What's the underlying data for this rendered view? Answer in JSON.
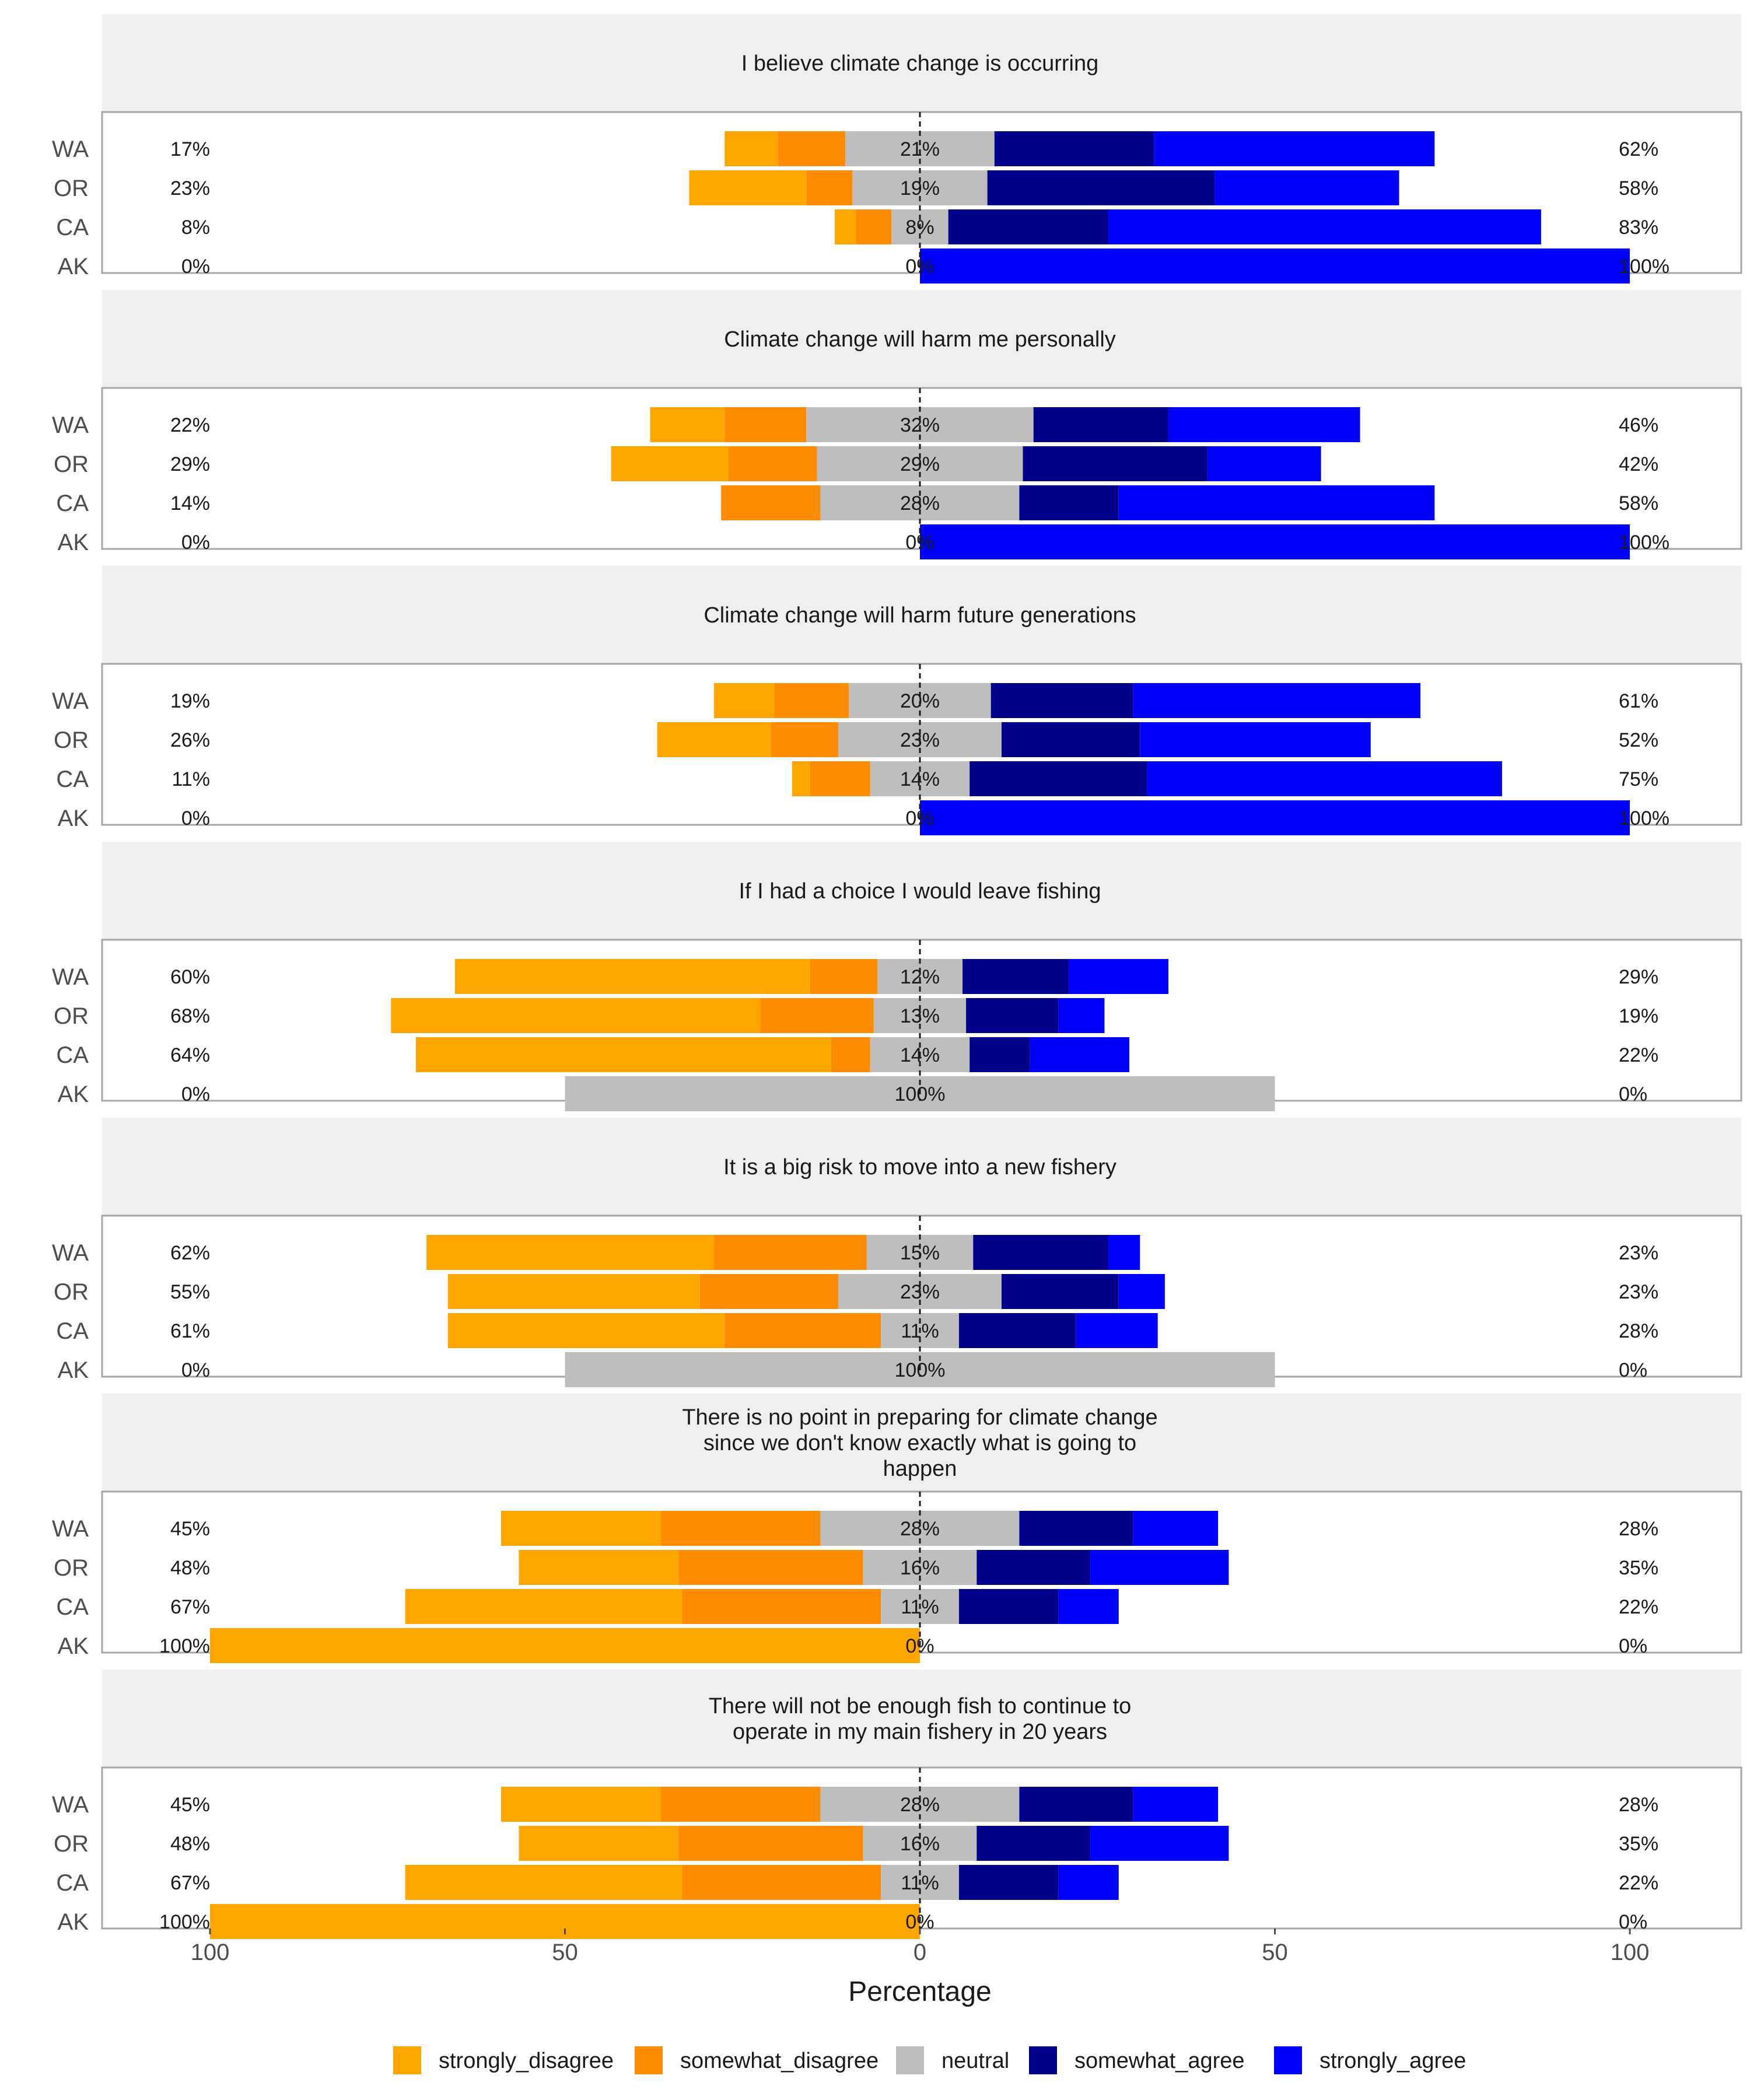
{
  "chart_data": {
    "type": "bar",
    "orientation": "horizontal-diverging-stacked",
    "xlabel": "Percentage",
    "xlim": [
      -100,
      100
    ],
    "x_ticks": [
      -100,
      -50,
      0,
      50,
      100
    ],
    "x_tick_labels": [
      "100",
      "50",
      "0",
      "50",
      "100"
    ],
    "legend_position": "bottom",
    "levels": [
      "strongly_disagree",
      "somewhat_disagree",
      "neutral",
      "somewhat_agree",
      "strongly_agree"
    ],
    "colors": {
      "strongly_disagree": "#FFA500",
      "somewhat_disagree": "#FF8C00",
      "neutral": "#BEBEBE",
      "somewhat_agree": "#00008B",
      "strongly_agree": "#0000FF"
    },
    "panels": [
      {
        "title": [
          "I believe climate change is occurring"
        ],
        "rows": [
          {
            "group": "WA",
            "left_label": "17%",
            "center_label": "21%",
            "right_label": "62%",
            "values": [
              7.5,
              9.5,
              21,
              22.5,
              39.5
            ]
          },
          {
            "group": "OR",
            "left_label": "23%",
            "center_label": "19%",
            "right_label": "58%",
            "values": [
              16.5,
              6.5,
              19,
              32,
              26
            ]
          },
          {
            "group": "CA",
            "left_label": "8%",
            "center_label": "8%",
            "right_label": "83%",
            "values": [
              3,
              5,
              8,
              22.5,
              61
            ]
          },
          {
            "group": "AK",
            "left_label": "0%",
            "center_label": "0%",
            "right_label": "100%",
            "values": [
              0,
              0,
              0,
              0,
              100
            ]
          }
        ]
      },
      {
        "title": [
          "Climate change will harm me personally"
        ],
        "rows": [
          {
            "group": "WA",
            "left_label": "22%",
            "center_label": "32%",
            "right_label": "46%",
            "values": [
              10.5,
              11.5,
              32,
              19,
              27
            ]
          },
          {
            "group": "OR",
            "left_label": "29%",
            "center_label": "29%",
            "right_label": "42%",
            "values": [
              16.5,
              12.5,
              29,
              26,
              16
            ]
          },
          {
            "group": "CA",
            "left_label": "14%",
            "center_label": "28%",
            "right_label": "58%",
            "values": [
              0,
              14,
              28,
              14,
              44.5
            ]
          },
          {
            "group": "AK",
            "left_label": "0%",
            "center_label": "0%",
            "right_label": "100%",
            "values": [
              0,
              0,
              0,
              0,
              100
            ]
          }
        ]
      },
      {
        "title": [
          "Climate change will harm future generations"
        ],
        "rows": [
          {
            "group": "WA",
            "left_label": "19%",
            "center_label": "20%",
            "right_label": "61%",
            "values": [
              8.5,
              10.5,
              20,
              20,
              40.5
            ]
          },
          {
            "group": "OR",
            "left_label": "26%",
            "center_label": "23%",
            "right_label": "52%",
            "values": [
              16,
              9.5,
              23,
              19.5,
              32.5
            ]
          },
          {
            "group": "CA",
            "left_label": "11%",
            "center_label": "14%",
            "right_label": "75%",
            "values": [
              2.5,
              8.5,
              14,
              25,
              50
            ]
          },
          {
            "group": "AK",
            "left_label": "0%",
            "center_label": "0%",
            "right_label": "100%",
            "values": [
              0,
              0,
              0,
              0,
              100
            ]
          }
        ]
      },
      {
        "title": [
          "If I had a choice I would leave fishing"
        ],
        "rows": [
          {
            "group": "WA",
            "left_label": "60%",
            "center_label": "12%",
            "right_label": "29%",
            "values": [
              50,
              9.5,
              12,
              15,
              14
            ]
          },
          {
            "group": "OR",
            "left_label": "68%",
            "center_label": "13%",
            "right_label": "19%",
            "values": [
              52,
              16,
              13,
              13,
              6.5
            ]
          },
          {
            "group": "CA",
            "left_label": "64%",
            "center_label": "14%",
            "right_label": "22%",
            "values": [
              58.5,
              5.5,
              14,
              8.5,
              14
            ]
          },
          {
            "group": "AK",
            "left_label": "0%",
            "center_label": "100%",
            "right_label": "0%",
            "values": [
              0,
              0,
              100,
              0,
              0
            ]
          }
        ]
      },
      {
        "title": [
          "It is a big risk to move into a new fishery"
        ],
        "rows": [
          {
            "group": "WA",
            "left_label": "62%",
            "center_label": "15%",
            "right_label": "23%",
            "values": [
              40.5,
              21.5,
              15,
              19,
              4.5
            ]
          },
          {
            "group": "OR",
            "left_label": "55%",
            "center_label": "23%",
            "right_label": "23%",
            "values": [
              35.5,
              19.5,
              23,
              16.5,
              6.5
            ]
          },
          {
            "group": "CA",
            "left_label": "61%",
            "center_label": "11%",
            "right_label": "28%",
            "values": [
              39,
              22,
              11,
              16.5,
              11.5
            ]
          },
          {
            "group": "AK",
            "left_label": "0%",
            "center_label": "100%",
            "right_label": "0%",
            "values": [
              0,
              0,
              100,
              0,
              0
            ]
          }
        ]
      },
      {
        "title": [
          "There is no point in preparing for climate change",
          "since we don't know exactly what is going to",
          "happen"
        ],
        "rows": [
          {
            "group": "WA",
            "left_label": "45%",
            "center_label": "28%",
            "right_label": "28%",
            "values": [
              22.5,
              22.5,
              28,
              16,
              12
            ]
          },
          {
            "group": "OR",
            "left_label": "48%",
            "center_label": "16%",
            "right_label": "35%",
            "values": [
              22.5,
              26,
              16,
              16,
              19.5
            ]
          },
          {
            "group": "CA",
            "left_label": "67%",
            "center_label": "11%",
            "right_label": "22%",
            "values": [
              39,
              28,
              11,
              14,
              8.5
            ]
          },
          {
            "group": "AK",
            "left_label": "100%",
            "center_label": "0%",
            "right_label": "0%",
            "values": [
              100,
              0,
              0,
              0,
              0
            ]
          }
        ]
      },
      {
        "title": [
          "There will not be enough fish to continue to",
          "operate in my main fishery in 20 years"
        ],
        "rows": [
          {
            "group": "WA",
            "left_label": "45%",
            "center_label": "28%",
            "right_label": "28%",
            "values": [
              22.5,
              22.5,
              28,
              16,
              12
            ]
          },
          {
            "group": "OR",
            "left_label": "48%",
            "center_label": "16%",
            "right_label": "35%",
            "values": [
              22.5,
              26,
              16,
              16,
              19.5
            ]
          },
          {
            "group": "CA",
            "left_label": "67%",
            "center_label": "11%",
            "right_label": "22%",
            "values": [
              39,
              28,
              11,
              14,
              8.5
            ]
          },
          {
            "group": "AK",
            "left_label": "100%",
            "center_label": "0%",
            "right_label": "0%",
            "values": [
              100,
              0,
              0,
              0,
              0
            ]
          }
        ]
      }
    ]
  }
}
